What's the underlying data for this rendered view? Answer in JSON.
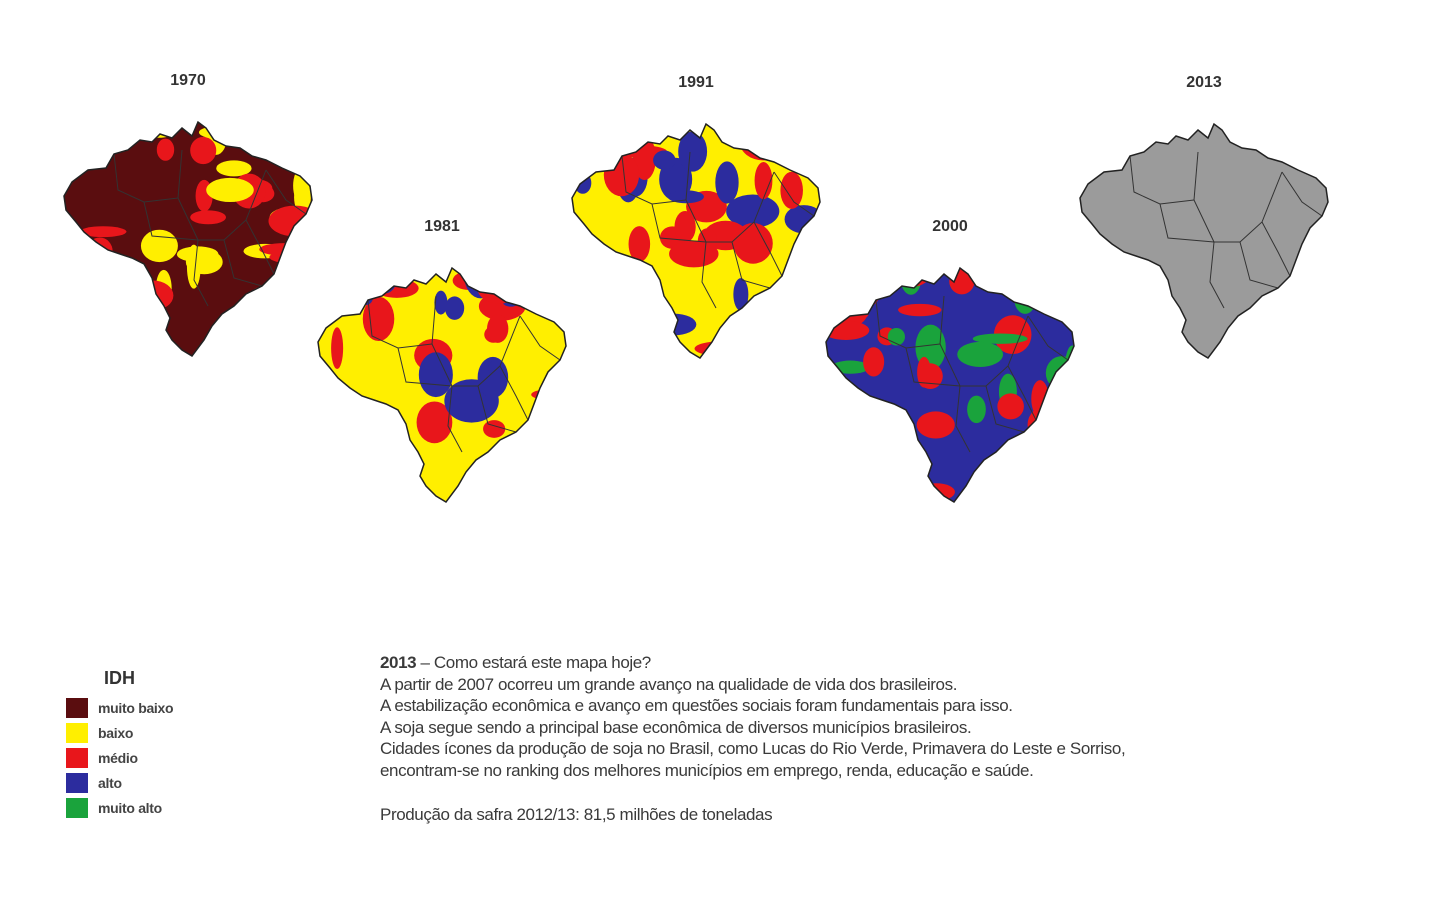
{
  "maps": [
    {
      "year": "1970",
      "fills": [
        "#5a0d0f",
        "#ffef00",
        "#e8161b"
      ]
    },
    {
      "year": "1981",
      "fills": [
        "#ffef00",
        "#e8161b",
        "#2c2c9e"
      ]
    },
    {
      "year": "1991",
      "fills": [
        "#ffef00",
        "#e8161b",
        "#2c2c9e"
      ]
    },
    {
      "year": "2000",
      "fills": [
        "#2c2c9e",
        "#e8161b",
        "#1aa33c"
      ]
    },
    {
      "year": "2013",
      "fills": [
        "#9b9b9b"
      ]
    }
  ],
  "legend": {
    "title": "IDH",
    "items": [
      {
        "label": "muito baixo",
        "color": "#5a0d0f"
      },
      {
        "label": "baixo",
        "color": "#ffef00"
      },
      {
        "label": "médio",
        "color": "#e8161b"
      },
      {
        "label": "alto",
        "color": "#2c2c9e"
      },
      {
        "label": "muito alto",
        "color": "#1aa33c"
      }
    ]
  },
  "caption": {
    "year": "2013",
    "headline": " – Como estará este mapa hoje?",
    "lines": [
      "A partir de 2007 ocorreu um grande avanço na qualidade de vida dos brasileiros.",
      "A estabilização econômica e avanço em questões sociais foram fundamentais para isso.",
      "A soja segue sendo a principal base econômica de diversos municípios brasileiros.",
      "Cidades ícones da produção de soja no Brasil,  como Lucas do Rio Verde, Primavera do Leste e Sorriso,",
      "encontram-se no ranking dos melhores municípios em emprego, renda, educação e saúde."
    ],
    "production": "Produção da safra 2012/13: 81,5 milhões de toneladas"
  }
}
